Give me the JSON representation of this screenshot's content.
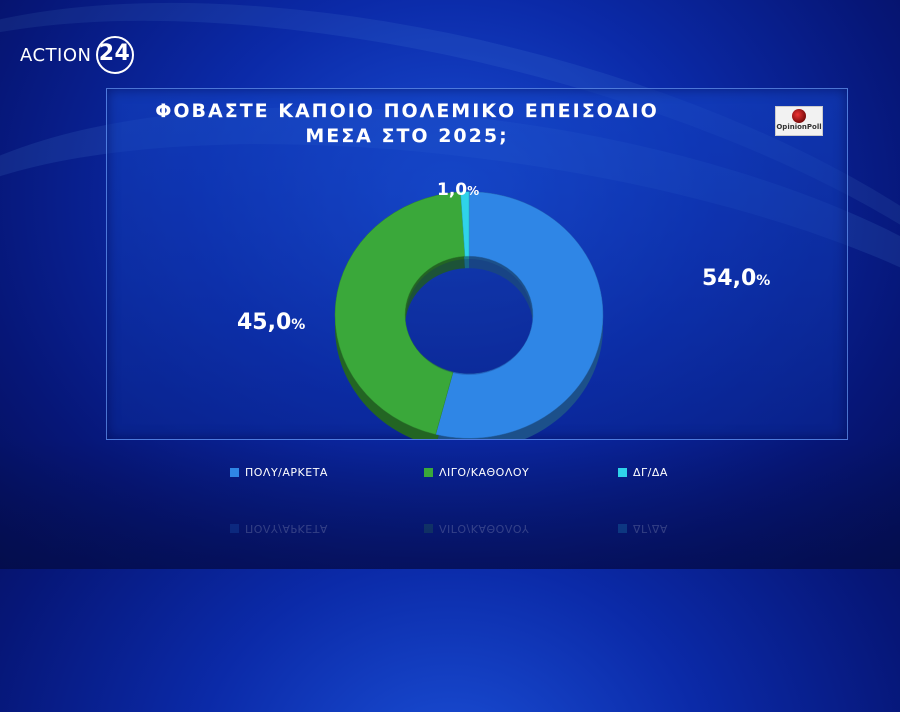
{
  "brand": {
    "name": "ACTION",
    "number": "24"
  },
  "logo": {
    "text": "OpinionPoll"
  },
  "chart_data": {
    "type": "pie",
    "title_line1": "ΦΟΒΑΣΤΕ ΚΑΠΟΙΟ ΠΟΛΕΜΙΚΟ ΕΠΕΙΣΟΔΙΟ",
    "title_line2": "ΜΕΣΑ ΣΤΟ 2025;",
    "categories": [
      "ΠΟΛΥ/ΑΡΚΕΤΑ",
      "ΛΙΓΟ/ΚΑΘΟΛΟΥ",
      "ΔΓ/ΔΑ"
    ],
    "values": [
      54.0,
      45.0,
      1.0
    ],
    "labels": [
      "54,0%",
      "45,0%",
      "1,0%"
    ],
    "colors": [
      "#2f86e6",
      "#3aa83a",
      "#2fd3ea"
    ],
    "donut": true,
    "legend_position": "bottom"
  }
}
